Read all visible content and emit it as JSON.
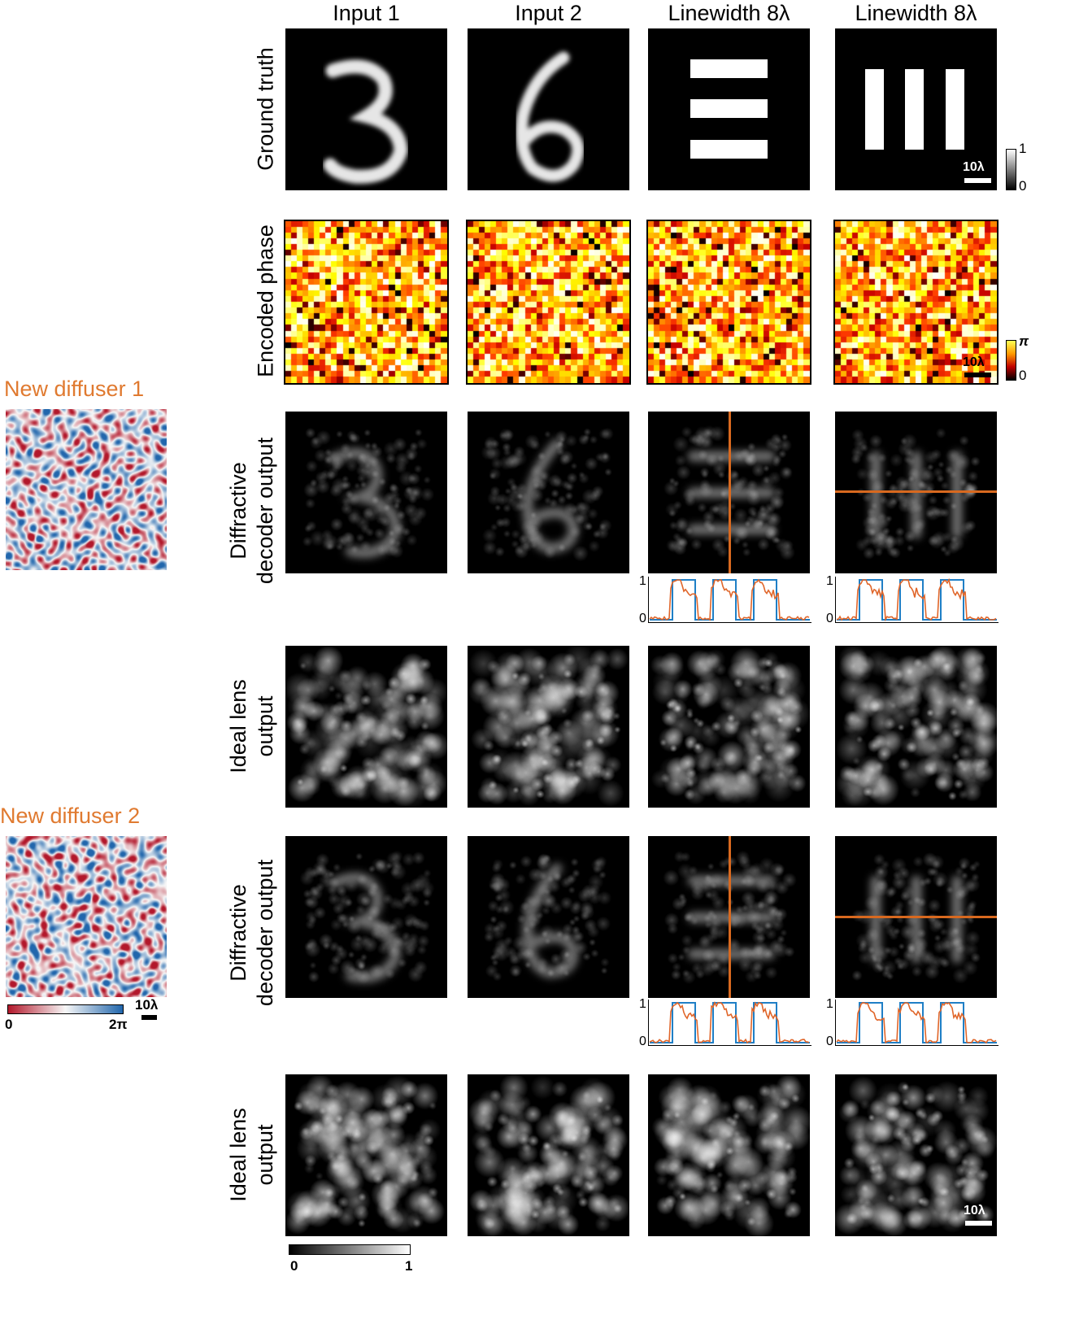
{
  "columns": [
    "Input 1",
    "Input 2",
    "Linewidth 8λ",
    "Linewidth 8λ"
  ],
  "rows": {
    "ground_truth": "Ground truth",
    "encoded_phase": "Encoded phase",
    "diffractive_decoder_line1": "Diffractive",
    "diffractive_decoder_line2": "decoder output",
    "ideal_lens_line1": "Ideal lens",
    "ideal_lens_line2": "output"
  },
  "diffusers": {
    "d1_title": "New diffuser 1",
    "d2_title": "New diffuser 2",
    "colorbar_min": "0",
    "colorbar_max": "2π",
    "scale": "10λ"
  },
  "colorbars": {
    "gt_min": "0",
    "gt_max": "1",
    "phase_min": "0",
    "phase_max": "π",
    "intensity_min": "0",
    "intensity_max": "1"
  },
  "scalebars": {
    "gt": "10λ",
    "phase": "10λ",
    "ideal": "10λ"
  },
  "profile_axis": {
    "top": "1",
    "bottom": "0"
  },
  "colors": {
    "accent": "#e07a30",
    "profile_truth": "#1f7fc6",
    "profile_measured": "#e0662a"
  }
}
